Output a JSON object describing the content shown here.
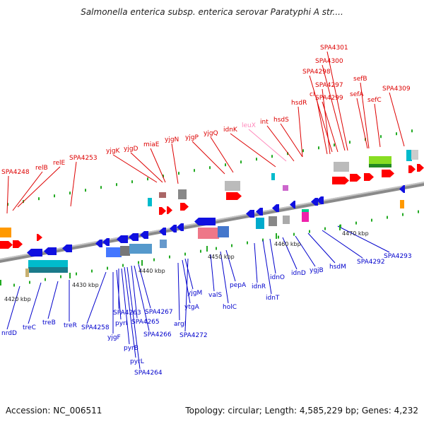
{
  "title": "Salmonella enterica subsp. enterica serovar Paratyphi A str....",
  "footer": {
    "accession": "Accession: NC_006511",
    "summary": "Topology: circular; Length: 4,585,229 bp; Genes: 4,232"
  },
  "colors": {
    "forward_label": "#dd0000",
    "reverse_label": "#0000cc",
    "pseudo_label": "#ff88bb",
    "backbone": "#888888",
    "forward_gene": "#ff0000",
    "reverse_gene": "#1010e0"
  },
  "scale_labels": [
    "4420 kbp",
    "4430 kbp",
    "4440 kbp",
    "4450 kbp",
    "4460 kbp",
    "4470 kbp"
  ],
  "upper_labels": [
    "SPA4248",
    "relB",
    "relE",
    "SPA4253",
    "yjgK",
    "yjgD",
    "miaE",
    "yjgN",
    "yjgP",
    "yjgQ",
    "idnK",
    "leuX",
    "int",
    "hsdS",
    "hsdR",
    "cI",
    "SPA4297",
    "SPA4298",
    "SPA4299",
    "SPA4300",
    "SPA4301",
    "sefA",
    "sefB",
    "sefC",
    "SPA4309"
  ],
  "lower_labels": [
    "nrdD",
    "treC",
    "treB",
    "treR",
    "SPA4258",
    "yjgF",
    "pyrI",
    "SPA4263",
    "pyrB",
    "pyrL",
    "SPA4264",
    "SPA4265",
    "SPA4266",
    "SPA4267",
    "argI",
    "ytgA",
    "yjgM",
    "SPA4272",
    "valS",
    "holC",
    "pepA",
    "idnR",
    "idnT",
    "idnO",
    "idnD",
    "ygjB",
    "hsdM",
    "SPA4292",
    "SPA4293"
  ]
}
